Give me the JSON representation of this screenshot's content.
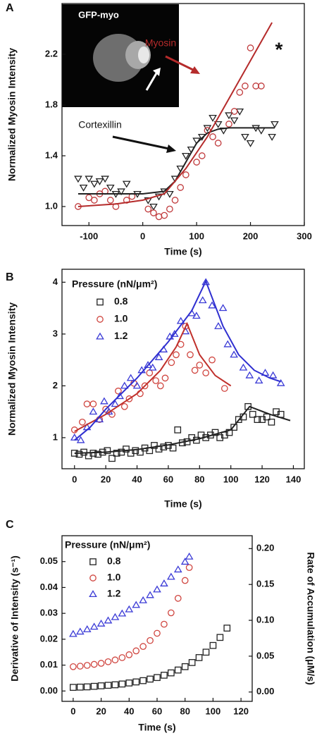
{
  "chart_data": [
    {
      "type": "scatter",
      "panel_label": "A",
      "x_label": "Time (s)",
      "y_label": "Normalized Myosin Intensity",
      "xlim": [
        -150,
        300
      ],
      "xticks": [
        -100,
        0,
        100,
        200,
        300
      ],
      "ylim": [
        0.85,
        2.6
      ],
      "yticks": [
        {
          "value": 1.0,
          "label": "1.0"
        },
        1.4,
        1.8,
        2.2
      ],
      "inset_label": "GFP-myo",
      "annotations": [
        "Myosin",
        "Cortexillin",
        "*"
      ],
      "series": [
        {
          "marker": "triangle-down",
          "color": "#222222",
          "x": [
            -120,
            -110,
            -100,
            -90,
            -80,
            -70,
            -60,
            -50,
            -40,
            -30,
            -10,
            10,
            20,
            30,
            40,
            50,
            60,
            70,
            80,
            90,
            100,
            110,
            120,
            130,
            140,
            150,
            160,
            170,
            180,
            190,
            200,
            210,
            220,
            240,
            245
          ],
          "values": [
            1.22,
            1.15,
            1.22,
            1.18,
            1.2,
            1.22,
            1.15,
            1.1,
            1.12,
            1.18,
            1.1,
            1.05,
            1.0,
            1.08,
            1.12,
            1.1,
            1.22,
            1.3,
            1.4,
            1.45,
            1.52,
            1.55,
            1.62,
            1.7,
            1.65,
            1.6,
            1.72,
            1.68,
            1.75,
            1.55,
            1.5,
            1.62,
            1.6,
            1.55,
            1.65
          ]
        },
        {
          "marker": "circle",
          "color": "#c0393b",
          "x": [
            -120,
            -100,
            -90,
            -80,
            -70,
            -60,
            -50,
            -30,
            -20,
            10,
            20,
            30,
            40,
            50,
            60,
            70,
            80,
            100,
            110,
            120,
            130,
            140,
            160,
            170,
            180,
            190,
            200,
            210,
            220
          ],
          "values": [
            1.0,
            1.07,
            1.05,
            1.1,
            1.12,
            1.05,
            1.0,
            1.05,
            1.08,
            0.98,
            0.95,
            0.92,
            0.93,
            0.98,
            1.05,
            1.15,
            1.25,
            1.35,
            1.4,
            1.6,
            1.55,
            1.5,
            1.65,
            1.75,
            1.9,
            1.95,
            2.25,
            1.95,
            1.95
          ]
        },
        {
          "marker": "line",
          "color": "#222222",
          "x": [
            -120,
            0,
            40,
            60,
            80,
            100,
            120,
            140,
            160,
            245
          ],
          "values": [
            1.1,
            1.1,
            1.12,
            1.2,
            1.35,
            1.5,
            1.58,
            1.61,
            1.62,
            1.62
          ]
        },
        {
          "marker": "line",
          "color": "#b52b2b",
          "x": [
            -120,
            -50,
            0,
            40,
            80,
            120,
            160,
            200,
            240
          ],
          "values": [
            1.0,
            1.02,
            1.05,
            1.1,
            1.3,
            1.55,
            1.85,
            2.15,
            2.45
          ]
        }
      ]
    },
    {
      "type": "scatter",
      "panel_label": "B",
      "x_label": "Time (s)",
      "y_label": "Normalized Myosin Intensity",
      "xlim": [
        -8,
        147
      ],
      "xticks": [
        0,
        20,
        40,
        60,
        80,
        100,
        120,
        140
      ],
      "ylim": [
        0.4,
        4.25
      ],
      "yticks": [
        1,
        2,
        3,
        4
      ],
      "legend_title": "Pressure (nN/μm²)",
      "series": [
        {
          "name": "0.8",
          "marker": "square",
          "color": "#222222",
          "x": [
            0,
            3,
            6,
            9,
            12,
            15,
            18,
            21,
            24,
            27,
            30,
            33,
            36,
            39,
            42,
            45,
            48,
            51,
            54,
            57,
            60,
            63,
            66,
            69,
            72,
            75,
            78,
            81,
            84,
            87,
            90,
            93,
            96,
            99,
            102,
            105,
            108,
            111,
            114,
            117,
            120,
            123,
            126,
            129,
            132
          ],
          "values": [
            0.7,
            0.68,
            0.72,
            0.65,
            0.7,
            0.68,
            0.72,
            0.75,
            0.6,
            0.7,
            0.72,
            0.78,
            0.7,
            0.75,
            0.72,
            0.8,
            0.75,
            0.85,
            0.78,
            0.82,
            0.85,
            0.8,
            1.15,
            0.9,
            0.92,
            1.0,
            0.95,
            1.05,
            1.0,
            1.05,
            1.1,
            1.0,
            1.05,
            1.1,
            1.2,
            1.35,
            1.4,
            1.6,
            1.45,
            1.35,
            1.35,
            1.4,
            1.3,
            1.5,
            1.45
          ]
        },
        {
          "name": "1.0",
          "marker": "circle",
          "color": "#d0453f",
          "x": [
            0,
            5,
            8,
            12,
            16,
            20,
            24,
            28,
            32,
            35,
            38,
            42,
            45,
            48,
            52,
            55,
            58,
            62,
            65,
            68,
            71,
            74,
            77,
            80,
            84,
            88,
            96
          ],
          "values": [
            1.15,
            1.3,
            1.65,
            1.65,
            1.35,
            1.55,
            1.45,
            1.9,
            1.6,
            1.75,
            2.05,
            1.85,
            2.0,
            2.25,
            2.1,
            2.0,
            2.15,
            2.45,
            2.6,
            2.8,
            3.15,
            2.6,
            2.3,
            2.4,
            2.25,
            2.5,
            1.95
          ]
        },
        {
          "name": "1.2",
          "marker": "triangle-up",
          "color": "#3a3ad6",
          "x": [
            0,
            4,
            8,
            12,
            16,
            19,
            22,
            26,
            29,
            32,
            36,
            40,
            43,
            47,
            50,
            54,
            57,
            61,
            64,
            68,
            71,
            75,
            78,
            82,
            84,
            88,
            92,
            95,
            98,
            102,
            108,
            112,
            118,
            122,
            127,
            132
          ],
          "values": [
            1.0,
            0.95,
            1.2,
            1.5,
            1.35,
            1.7,
            1.5,
            1.65,
            1.8,
            2.0,
            2.15,
            2.0,
            2.3,
            2.4,
            2.35,
            2.55,
            2.7,
            2.95,
            3.0,
            3.25,
            3.05,
            3.4,
            3.35,
            3.65,
            4.0,
            3.55,
            3.15,
            3.5,
            2.8,
            2.6,
            2.35,
            2.2,
            2.1,
            2.25,
            2.2,
            2.05
          ]
        },
        {
          "marker": "line",
          "color": "#222222",
          "x": [
            0,
            20,
            40,
            60,
            80,
            100,
            112,
            125,
            138
          ],
          "values": [
            0.7,
            0.72,
            0.77,
            0.86,
            0.98,
            1.15,
            1.6,
            1.45,
            1.33
          ]
        },
        {
          "marker": "line",
          "color": "#c0302b",
          "x": [
            0,
            20,
            40,
            55,
            65,
            72,
            80,
            90,
            100
          ],
          "values": [
            1.12,
            1.45,
            1.85,
            2.3,
            2.75,
            3.2,
            2.6,
            2.2,
            2.0
          ]
        },
        {
          "marker": "line",
          "color": "#2f2fd0",
          "x": [
            0,
            10,
            20,
            40,
            60,
            75,
            84,
            95,
            105,
            115,
            125,
            132
          ],
          "values": [
            0.95,
            1.2,
            1.55,
            2.15,
            2.85,
            3.45,
            4.02,
            3.15,
            2.6,
            2.3,
            2.15,
            2.08
          ]
        }
      ]
    },
    {
      "type": "scatter",
      "panel_label": "C",
      "x_label": "Time (s)",
      "y_label": "Derivative of Intensity (s⁻¹)",
      "y2_label": "Rate of Accumulation (μM/s)",
      "xlim": [
        -8,
        128
      ],
      "xticks": [
        0,
        20,
        40,
        60,
        80,
        100,
        120
      ],
      "ylim": [
        -0.004,
        0.06
      ],
      "yticks": [
        {
          "value": 0,
          "label": "0.00"
        },
        0.01,
        0.02,
        0.03,
        0.04,
        0.05
      ],
      "y2lim": [
        -0.013,
        0.218
      ],
      "y2ticks": [
        {
          "value": 0,
          "label": "0.00"
        },
        0.05,
        {
          "value": 0.1,
          "label": "0.10"
        },
        0.15,
        {
          "value": 0.2,
          "label": "0.20"
        }
      ],
      "legend_title": "Pressure (nN/μm²)",
      "series": [
        {
          "name": "0.8",
          "marker": "square",
          "color": "#222222",
          "x": [
            0,
            5,
            10,
            15,
            20,
            25,
            30,
            35,
            40,
            45,
            50,
            55,
            60,
            65,
            70,
            75,
            80,
            85,
            90,
            95,
            100,
            105,
            110
          ],
          "values": [
            0.0014,
            0.0015,
            0.0016,
            0.0018,
            0.002,
            0.0022,
            0.0024,
            0.0027,
            0.0031,
            0.0035,
            0.004,
            0.0046,
            0.0052,
            0.0061,
            0.007,
            0.0081,
            0.0094,
            0.011,
            0.0129,
            0.015,
            0.0176,
            0.0207,
            0.0243
          ]
        },
        {
          "name": "1.0",
          "marker": "circle",
          "color": "#d0453f",
          "x": [
            0,
            5,
            10,
            15,
            20,
            25,
            30,
            35,
            40,
            45,
            50,
            55,
            60,
            65,
            70,
            75,
            80,
            83
          ],
          "values": [
            0.0094,
            0.0096,
            0.0099,
            0.0103,
            0.0107,
            0.0113,
            0.012,
            0.0129,
            0.014,
            0.0155,
            0.0172,
            0.0195,
            0.0223,
            0.0258,
            0.0302,
            0.0358,
            0.0427,
            0.0477
          ]
        },
        {
          "name": "1.2",
          "marker": "triangle-up",
          "color": "#3a3ad6",
          "x": [
            0,
            5,
            10,
            15,
            20,
            25,
            30,
            35,
            40,
            45,
            50,
            55,
            60,
            65,
            70,
            75,
            80,
            83
          ],
          "values": [
            0.022,
            0.0229,
            0.0238,
            0.0248,
            0.026,
            0.0272,
            0.0285,
            0.0299,
            0.0315,
            0.0332,
            0.035,
            0.037,
            0.0392,
            0.0415,
            0.0441,
            0.0469,
            0.0499,
            0.0519
          ]
        }
      ]
    }
  ]
}
